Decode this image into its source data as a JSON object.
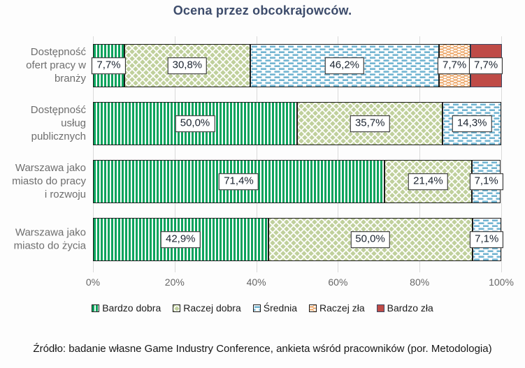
{
  "title": "Ocena przez obcokrajowców.",
  "source_note": "Źródło: badanie własne Game Industry Conference, ankieta wśród pracowników (por. Metodologia)",
  "colors": {
    "title_text": "#3d4c6b",
    "category_label_text": "#6e6e6e",
    "tick_label_text": "#666666",
    "green_stripe": "#0ba35d",
    "olive_diamond": "#c0d09c",
    "blue_dash_dark": "#58a7c9",
    "blue_dash_light": "#a7d0e2",
    "orange_wave": "#eca260",
    "red_solid": "#bf4b47",
    "red_border": "#3a4a66",
    "segment_border": "#1b1b1b",
    "gridline": "#dadada"
  },
  "chart_data": {
    "type": "bar",
    "orientation": "horizontal",
    "stacked": true,
    "title": "Ocena przez obcokrajowców.",
    "categories": [
      "Dostępność\nofert pracy w\nbranży",
      "Dostępność\nusług\npublicznych",
      "Warszawa jako\nmiasto do pracy\ni rozwoju",
      "Warszawa jako\nmiasto do życia"
    ],
    "series": [
      {
        "name": "Bardzo dobra",
        "fill": "stripes",
        "values": [
          7.7,
          50.0,
          71.4,
          42.9
        ],
        "labels": [
          "7,7%",
          "50,0%",
          "71,4%",
          "42,9%"
        ]
      },
      {
        "name": "Raczej dobra",
        "fill": "diamond",
        "values": [
          30.8,
          35.7,
          21.4,
          50.0
        ],
        "labels": [
          "30,8%",
          "35,7%",
          "21,4%",
          "50,0%"
        ]
      },
      {
        "name": "Średnia",
        "fill": "dash",
        "values": [
          46.2,
          14.3,
          7.1,
          7.1
        ],
        "labels": [
          "46,2%",
          "14,3%",
          "7,1%",
          "7,1%"
        ]
      },
      {
        "name": "Raczej zła",
        "fill": "wave",
        "values": [
          7.7,
          0,
          0,
          0
        ],
        "labels": [
          "7,7%",
          null,
          null,
          null
        ]
      },
      {
        "name": "Bardzo zła",
        "fill": "solid",
        "values": [
          7.7,
          0,
          0,
          0
        ],
        "labels": [
          "7,7%",
          null,
          null,
          null
        ]
      }
    ],
    "x_ticks": [
      "0%",
      "20%",
      "40%",
      "60%",
      "80%",
      "100%"
    ],
    "xlim": [
      0,
      100
    ],
    "grid": true,
    "legend_position": "bottom"
  }
}
